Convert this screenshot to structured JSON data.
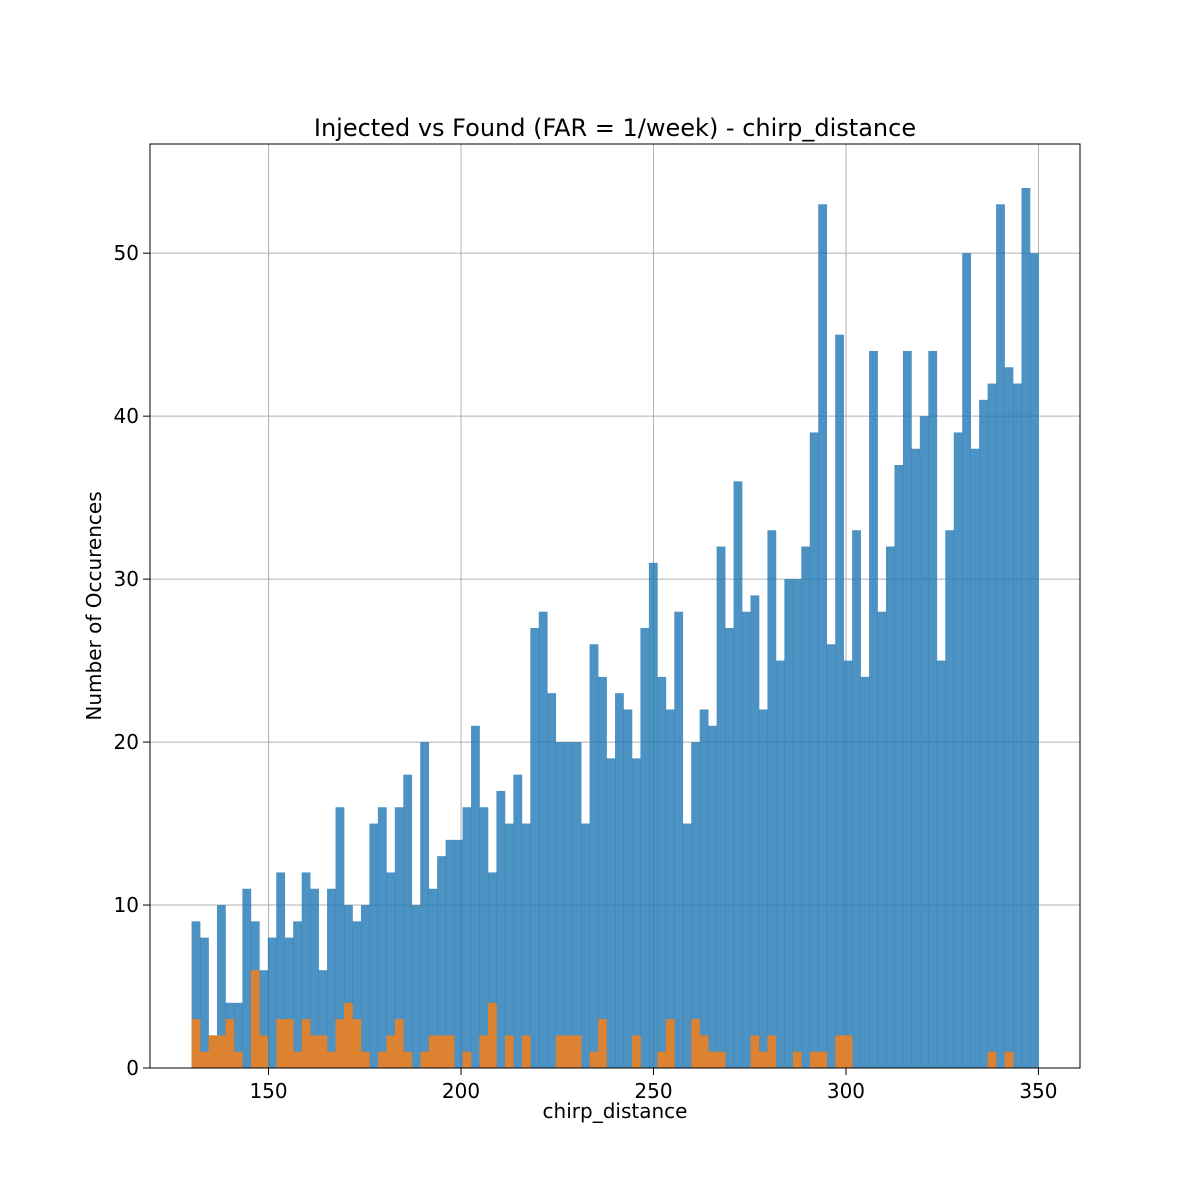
{
  "chart_data": {
    "type": "bar",
    "title": "Injected vs Found (FAR = 1/week) - chirp_distance",
    "xlabel": "chirp_distance",
    "ylabel": "Number of Occurences",
    "xlim": [
      119.2,
      360.8
    ],
    "ylim": [
      0,
      56.7
    ],
    "xticks": [
      150,
      200,
      250,
      300,
      350
    ],
    "yticks": [
      0,
      10,
      20,
      30,
      40,
      50
    ],
    "grid": true,
    "bins": {
      "start": 130.0,
      "end": 350.0,
      "count": 100
    },
    "colors": {
      "injected": "#1f77b4",
      "found": "#ff7f0e"
    },
    "series": [
      {
        "values": [
          9,
          8,
          2,
          10,
          4,
          4,
          11,
          9,
          6,
          8,
          12,
          8,
          9,
          12,
          11,
          6,
          11,
          16,
          10,
          9,
          10,
          15,
          16,
          12,
          16,
          18,
          10,
          20,
          11,
          13,
          14,
          14,
          16,
          21,
          16,
          12,
          17,
          15,
          18,
          15,
          27,
          28,
          23,
          20,
          20,
          20,
          15,
          26,
          24,
          19,
          23,
          22,
          19,
          27,
          31,
          24,
          22,
          28,
          15,
          20,
          22,
          21,
          32,
          27,
          36,
          28,
          29,
          22,
          33,
          25,
          30,
          30,
          32,
          39,
          53,
          26,
          45,
          25,
          33,
          24,
          44,
          28,
          32,
          37,
          44,
          38,
          40,
          44,
          25,
          33,
          39,
          50,
          38,
          41,
          42,
          53,
          43,
          42,
          54,
          50
        ]
      },
      {
        "values": [
          3,
          1,
          2,
          2,
          3,
          1,
          0,
          6,
          2,
          0,
          3,
          3,
          1,
          3,
          2,
          2,
          1,
          3,
          4,
          3,
          1,
          0,
          1,
          2,
          3,
          1,
          0,
          1,
          2,
          2,
          2,
          0,
          1,
          0,
          2,
          4,
          0,
          2,
          0,
          2,
          0,
          0,
          0,
          2,
          2,
          2,
          0,
          1,
          3,
          0,
          0,
          0,
          2,
          0,
          0,
          1,
          3,
          0,
          0,
          3,
          2,
          1,
          1,
          0,
          0,
          0,
          2,
          1,
          2,
          0,
          0,
          1,
          0,
          1,
          1,
          0,
          2,
          2,
          0,
          0,
          0,
          0,
          0,
          0,
          0,
          0,
          0,
          0,
          0,
          0,
          0,
          0,
          0,
          0,
          1,
          0,
          1,
          0,
          0,
          0
        ]
      }
    ]
  }
}
